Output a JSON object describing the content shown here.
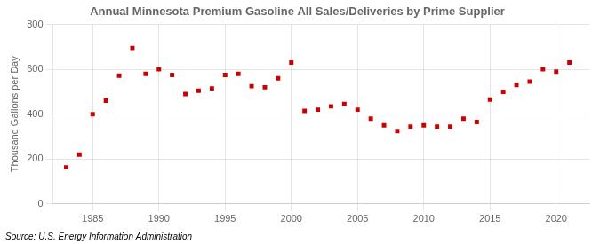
{
  "chart_data": {
    "type": "scatter",
    "title": "Annual Minnesota Premium Gasoline All Sales/Deliveries by Prime Supplier",
    "ylabel": "Thousand Gallons per Day",
    "source": "Source: U.S. Energy Information Administration",
    "x": [
      1983,
      1984,
      1985,
      1986,
      1987,
      1988,
      1989,
      1990,
      1991,
      1992,
      1993,
      1994,
      1995,
      1996,
      1997,
      1998,
      1999,
      2000,
      2001,
      2002,
      2003,
      2004,
      2005,
      2006,
      2007,
      2008,
      2009,
      2010,
      2011,
      2012,
      2013,
      2014,
      2015,
      2016,
      2017,
      2018,
      2019,
      2020,
      2021
    ],
    "values": [
      163,
      220,
      400,
      460,
      572,
      695,
      580,
      600,
      575,
      490,
      505,
      515,
      575,
      580,
      525,
      520,
      560,
      630,
      415,
      420,
      435,
      445,
      420,
      380,
      350,
      325,
      345,
      350,
      345,
      345,
      380,
      365,
      465,
      500,
      530,
      545,
      600,
      590,
      630
    ],
    "color": "#cc0000",
    "marker": "square",
    "xlim": [
      1982,
      2022.5
    ],
    "xticks": [
      1985,
      1990,
      1995,
      2000,
      2005,
      2010,
      2015,
      2020
    ],
    "ylim": [
      0,
      800
    ],
    "yticks": [
      0,
      200,
      400,
      600,
      800
    ],
    "grid": true
  }
}
